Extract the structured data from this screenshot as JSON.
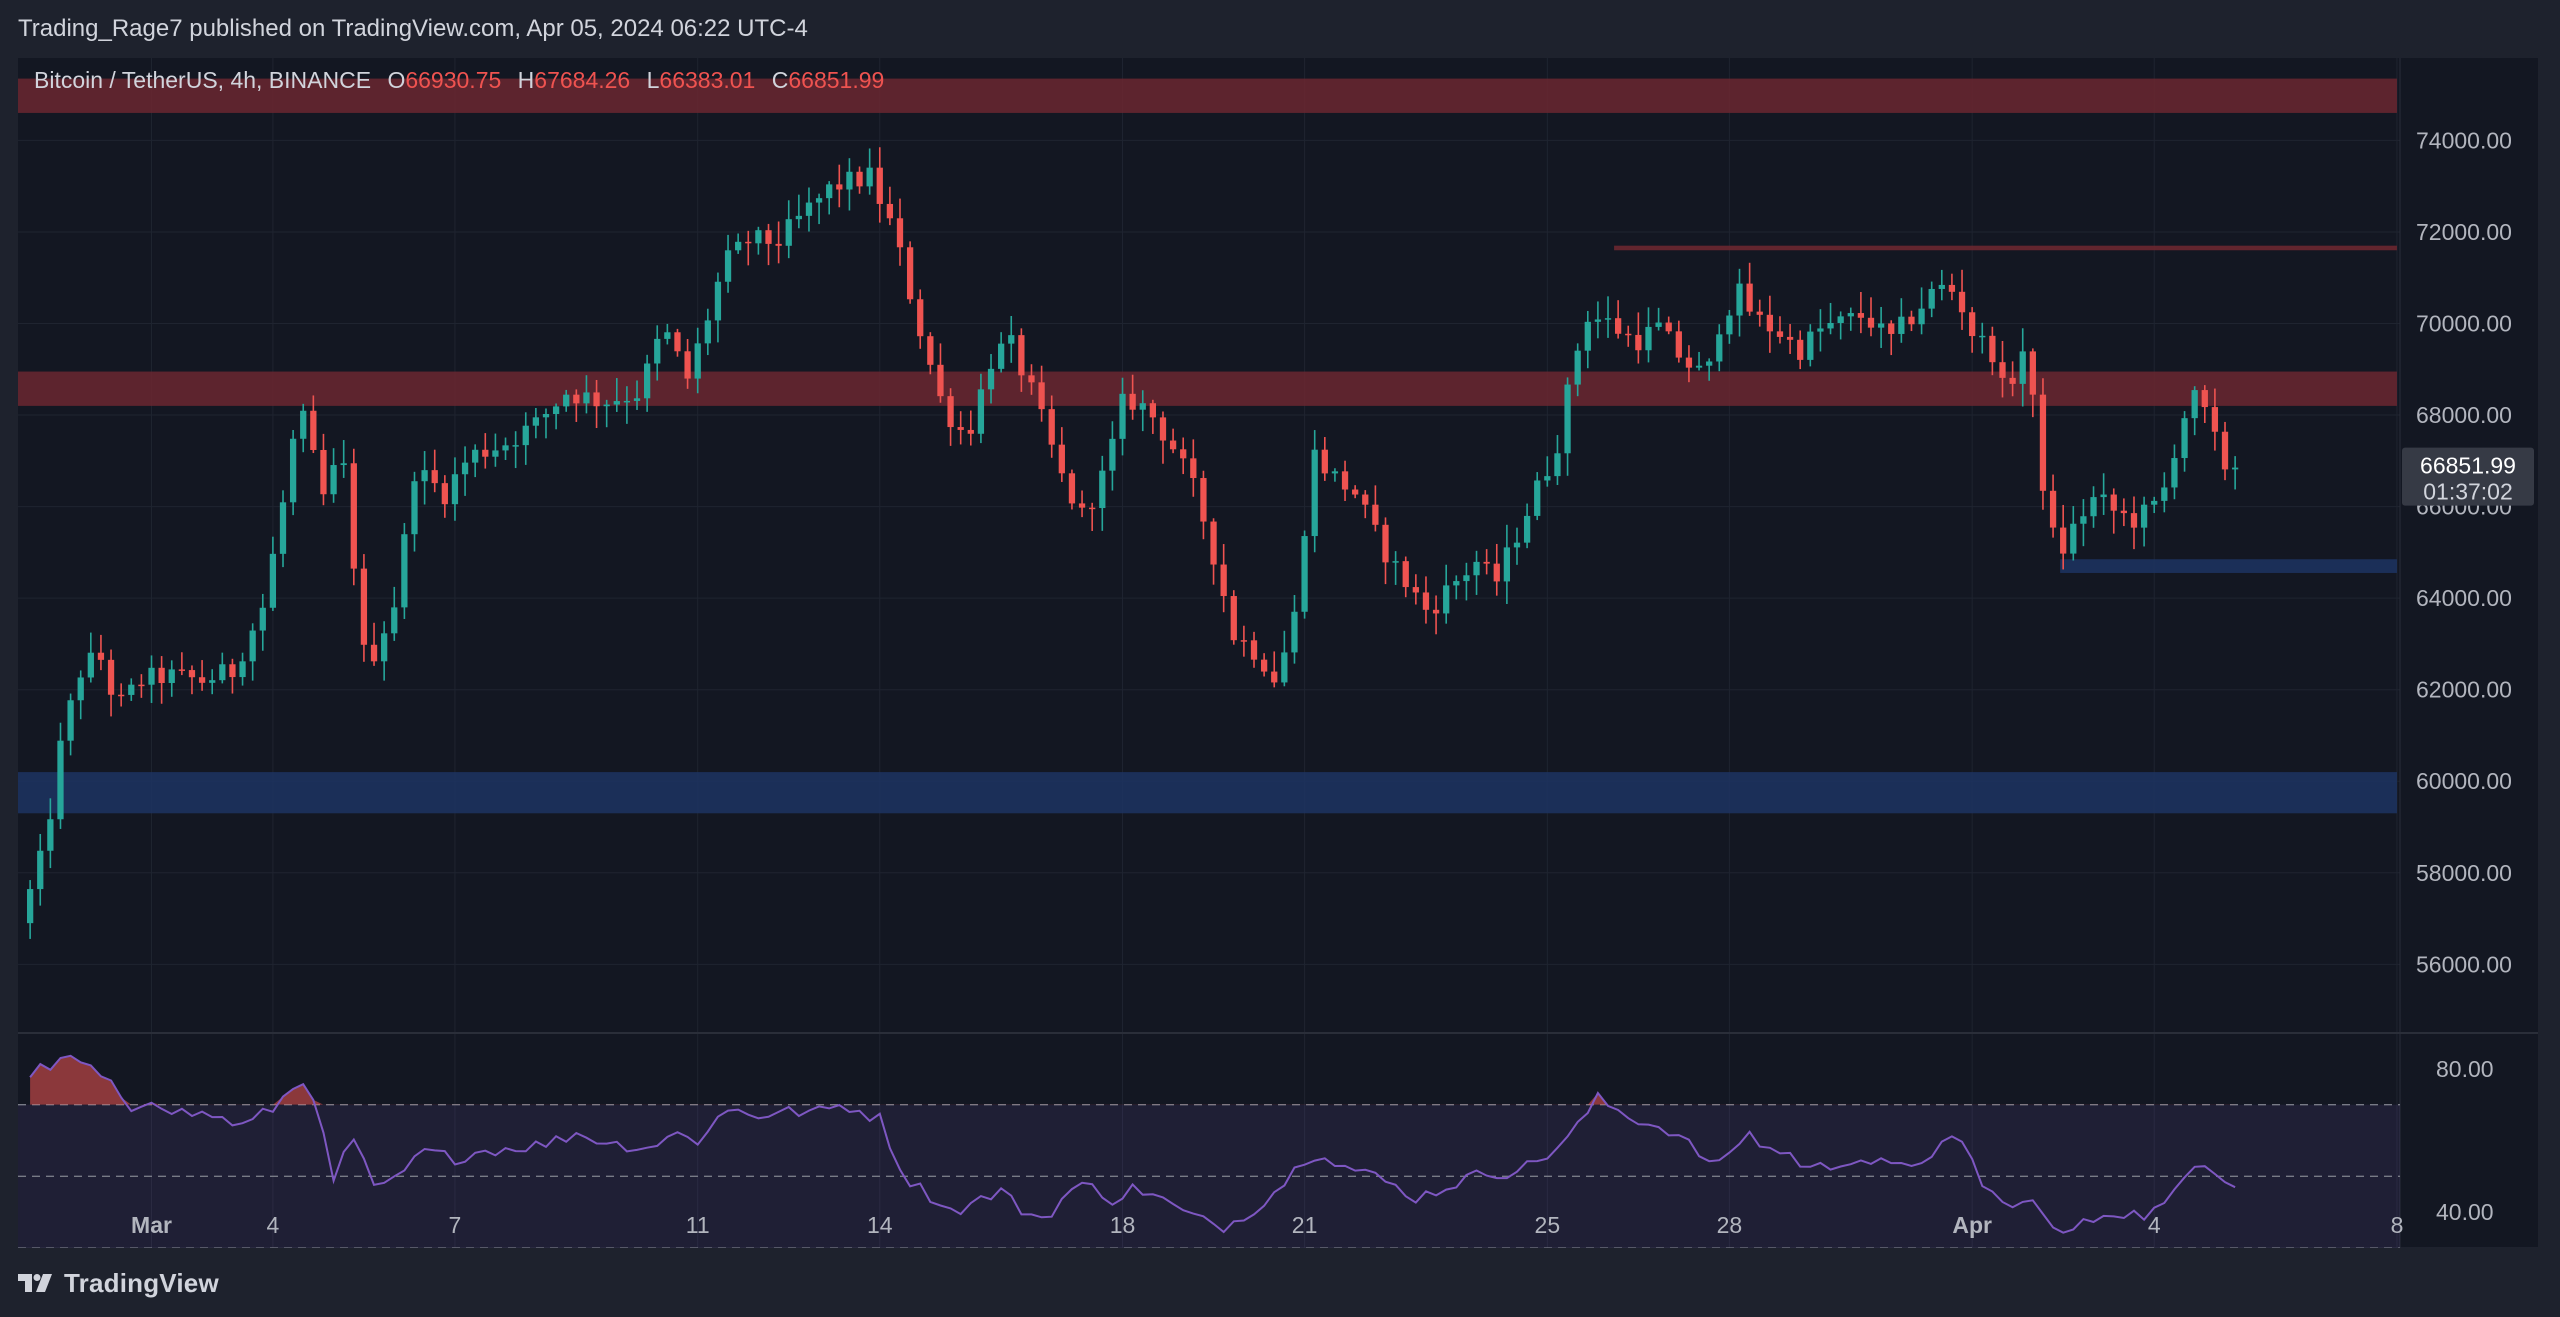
{
  "header": {
    "attribution": "Trading_Rage7 published on TradingView.com, Apr 05, 2024 06:22 UTC-4"
  },
  "footer": {
    "brand": "TradingView"
  },
  "legend": {
    "symbol": "Bitcoin / TetherUS, 4h, BINANCE",
    "o_label": "O",
    "o_value": "66930.75",
    "h_label": "H",
    "h_value": "67684.26",
    "l_label": "L",
    "l_value": "66383.01",
    "c_label": "C",
    "c_value": "66851.99"
  },
  "price_badge": {
    "price": "66851.99",
    "countdown": "01:37:02"
  },
  "colors": {
    "up": "#26a69a",
    "down": "#ef5350",
    "rsi_line": "#7e57c2",
    "resistance_zone": "#6b2730",
    "support_zone": "#1d3461",
    "background": "#131722",
    "grid": "#1f2430"
  },
  "chart_data": {
    "type": "candlestick",
    "timeframe": "4h",
    "ylim": [
      54500,
      75800
    ],
    "y_ticks": [
      56000,
      58000,
      60000,
      62000,
      64000,
      66000,
      68000,
      70000,
      72000,
      74000
    ],
    "y_tick_labels": [
      "56000.00",
      "58000.00",
      "60000.00",
      "62000.00",
      "64000.00",
      "66000.00",
      "68000.00",
      "70000.00",
      "72000.00",
      "74000.00"
    ],
    "x_ticks": [
      {
        "label": "Mar",
        "t": 2
      },
      {
        "label": "4",
        "t": 4
      },
      {
        "label": "7",
        "t": 7
      },
      {
        "label": "11",
        "t": 11
      },
      {
        "label": "14",
        "t": 14
      },
      {
        "label": "18",
        "t": 18
      },
      {
        "label": "21",
        "t": 21
      },
      {
        "label": "25",
        "t": 25
      },
      {
        "label": "28",
        "t": 28
      },
      {
        "label": "Apr",
        "t": 32
      },
      {
        "label": "4",
        "t": 35
      },
      {
        "label": "8",
        "t": 39
      }
    ],
    "x_range": [
      -0.2,
      39.05
    ],
    "last_price": 66851.99,
    "zones": [
      {
        "kind": "resistance",
        "from": 74600,
        "to": 75350,
        "t_from": -0.2,
        "t_to": 39
      },
      {
        "kind": "resistance",
        "from": 68200,
        "to": 68950,
        "t_from": -0.2,
        "t_to": 39
      },
      {
        "kind": "support",
        "from": 59300,
        "to": 60200,
        "t_from": -0.2,
        "t_to": 39
      },
      {
        "kind": "support",
        "from": 64550,
        "to": 64850,
        "t_from": 33.45,
        "t_to": 39
      },
      {
        "kind": "resistance-line",
        "from": 71600,
        "to": 71700,
        "t_from": 26.1,
        "t_to": 39
      }
    ],
    "price_anchors": [
      [
        0,
        56900
      ],
      [
        0.4,
        58500
      ],
      [
        0.7,
        61000
      ],
      [
        1.0,
        62400
      ],
      [
        1.3,
        62800
      ],
      [
        1.6,
        61600
      ],
      [
        2.0,
        62200
      ],
      [
        2.4,
        62300
      ],
      [
        3.0,
        62200
      ],
      [
        3.5,
        62400
      ],
      [
        4.0,
        63800
      ],
      [
        4.3,
        65800
      ],
      [
        4.6,
        68200
      ],
      [
        5.0,
        66200
      ],
      [
        5.3,
        67200
      ],
      [
        5.7,
        62400
      ],
      [
        6.2,
        64000
      ],
      [
        6.5,
        66800
      ],
      [
        7.0,
        66300
      ],
      [
        7.4,
        67100
      ],
      [
        8.0,
        67400
      ],
      [
        8.5,
        67800
      ],
      [
        9.0,
        68500
      ],
      [
        9.6,
        68300
      ],
      [
        10.2,
        68500
      ],
      [
        10.6,
        69900
      ],
      [
        11.0,
        68800
      ],
      [
        11.3,
        70000
      ],
      [
        11.6,
        71300
      ],
      [
        12.0,
        71800
      ],
      [
        12.5,
        71800
      ],
      [
        13.0,
        72500
      ],
      [
        13.4,
        73000
      ],
      [
        14.0,
        73200
      ],
      [
        14.4,
        72000
      ],
      [
        14.8,
        70000
      ],
      [
        15.2,
        68200
      ],
      [
        15.6,
        67500
      ],
      [
        16.0,
        69200
      ],
      [
        16.3,
        69600
      ],
      [
        16.7,
        68400
      ],
      [
        17.2,
        66500
      ],
      [
        17.5,
        65800
      ],
      [
        17.9,
        66800
      ],
      [
        18.2,
        68400
      ],
      [
        18.6,
        68100
      ],
      [
        19.0,
        67300
      ],
      [
        19.4,
        66200
      ],
      [
        19.7,
        64800
      ],
      [
        20.0,
        63200
      ],
      [
        20.4,
        62800
      ],
      [
        20.7,
        62200
      ],
      [
        21.0,
        63600
      ],
      [
        21.3,
        67200
      ],
      [
        21.6,
        66700
      ],
      [
        22.0,
        66300
      ],
      [
        22.4,
        65200
      ],
      [
        22.8,
        64400
      ],
      [
        23.2,
        63700
      ],
      [
        23.6,
        64300
      ],
      [
        24.0,
        64800
      ],
      [
        24.3,
        64300
      ],
      [
        24.7,
        65500
      ],
      [
        25.0,
        66400
      ],
      [
        25.3,
        67200
      ],
      [
        25.6,
        69100
      ],
      [
        25.8,
        70200
      ],
      [
        26.2,
        70000
      ],
      [
        26.6,
        69600
      ],
      [
        27.0,
        69900
      ],
      [
        27.4,
        69200
      ],
      [
        27.8,
        68800
      ],
      [
        28.0,
        70000
      ],
      [
        28.3,
        70700
      ],
      [
        28.6,
        70100
      ],
      [
        29.0,
        69800
      ],
      [
        29.3,
        69400
      ],
      [
        29.7,
        69900
      ],
      [
        30.0,
        70000
      ],
      [
        30.4,
        70200
      ],
      [
        30.8,
        69600
      ],
      [
        31.2,
        70200
      ],
      [
        31.6,
        70800
      ],
      [
        31.9,
        70700
      ],
      [
        32.2,
        69700
      ],
      [
        32.5,
        69400
      ],
      [
        32.7,
        68400
      ],
      [
        33.0,
        69400
      ],
      [
        33.2,
        68000
      ],
      [
        33.4,
        65800
      ],
      [
        33.6,
        64900
      ],
      [
        33.9,
        65700
      ],
      [
        34.2,
        66200
      ],
      [
        34.5,
        65900
      ],
      [
        34.8,
        65700
      ],
      [
        35.1,
        65900
      ],
      [
        35.3,
        66200
      ],
      [
        35.6,
        67800
      ],
      [
        35.8,
        68400
      ],
      [
        36.0,
        68000
      ],
      [
        36.2,
        67300
      ],
      [
        36.35,
        66852
      ]
    ],
    "rsi": {
      "ylim": [
        30,
        90
      ],
      "levels": [
        70,
        50,
        30
      ],
      "level_labels_ticks": [
        80,
        40
      ],
      "tick_labels": [
        "80.00",
        "40.00"
      ],
      "points": [
        [
          0,
          79
        ],
        [
          0.4,
          81
        ],
        [
          0.7,
          83
        ],
        [
          1.0,
          80
        ],
        [
          1.3,
          76
        ],
        [
          1.6,
          68
        ],
        [
          2.0,
          72
        ],
        [
          2.4,
          68
        ],
        [
          3.0,
          67
        ],
        [
          3.5,
          64
        ],
        [
          4.0,
          69
        ],
        [
          4.3,
          74
        ],
        [
          4.6,
          78
        ],
        [
          5.0,
          48
        ],
        [
          5.3,
          62
        ],
        [
          5.7,
          45
        ],
        [
          6.2,
          52
        ],
        [
          6.5,
          57
        ],
        [
          7.0,
          55
        ],
        [
          7.4,
          57
        ],
        [
          8.0,
          58
        ],
        [
          8.5,
          59
        ],
        [
          9.0,
          62
        ],
        [
          9.6,
          59
        ],
        [
          10.2,
          58
        ],
        [
          10.6,
          62
        ],
        [
          11.0,
          60
        ],
        [
          11.3,
          66
        ],
        [
          11.6,
          69
        ],
        [
          12.0,
          67
        ],
        [
          12.5,
          68
        ],
        [
          13.0,
          68
        ],
        [
          13.4,
          70
        ],
        [
          14.0,
          66
        ],
        [
          14.4,
          50
        ],
        [
          14.8,
          45
        ],
        [
          15.2,
          40
        ],
        [
          15.6,
          43
        ],
        [
          16.0,
          46
        ],
        [
          16.3,
          41
        ],
        [
          16.7,
          38
        ],
        [
          17.2,
          47
        ],
        [
          17.5,
          47
        ],
        [
          17.9,
          43
        ],
        [
          18.2,
          47
        ],
        [
          18.6,
          44
        ],
        [
          19.0,
          40
        ],
        [
          19.4,
          37
        ],
        [
          19.7,
          36
        ],
        [
          20.0,
          39
        ],
        [
          20.4,
          44
        ],
        [
          20.7,
          49
        ],
        [
          21.0,
          55
        ],
        [
          21.3,
          57
        ],
        [
          21.6,
          53
        ],
        [
          22.0,
          51
        ],
        [
          22.4,
          48
        ],
        [
          22.8,
          44
        ],
        [
          23.2,
          46
        ],
        [
          23.6,
          49
        ],
        [
          24.0,
          51
        ],
        [
          24.3,
          51
        ],
        [
          24.7,
          53
        ],
        [
          25.0,
          56
        ],
        [
          25.3,
          60
        ],
        [
          25.6,
          66
        ],
        [
          25.8,
          72
        ],
        [
          26.2,
          68
        ],
        [
          26.6,
          65
        ],
        [
          27.0,
          63
        ],
        [
          27.4,
          58
        ],
        [
          27.8,
          52
        ],
        [
          28.0,
          57
        ],
        [
          28.3,
          62
        ],
        [
          28.6,
          58
        ],
        [
          29.0,
          56
        ],
        [
          29.3,
          52
        ],
        [
          29.7,
          53
        ],
        [
          30.0,
          55
        ],
        [
          30.4,
          54
        ],
        [
          30.8,
          52
        ],
        [
          31.2,
          55
        ],
        [
          31.6,
          60
        ],
        [
          31.9,
          58
        ],
        [
          32.2,
          47
        ],
        [
          32.5,
          43
        ],
        [
          32.7,
          40
        ],
        [
          33.0,
          45
        ],
        [
          33.2,
          38
        ],
        [
          33.4,
          33
        ],
        [
          33.6,
          35
        ],
        [
          33.9,
          37
        ],
        [
          34.2,
          40
        ],
        [
          34.5,
          40
        ],
        [
          34.8,
          39
        ],
        [
          35.1,
          41
        ],
        [
          35.3,
          44
        ],
        [
          35.6,
          52
        ],
        [
          35.8,
          55
        ],
        [
          36.0,
          52
        ],
        [
          36.2,
          49
        ],
        [
          36.35,
          48
        ]
      ]
    }
  }
}
